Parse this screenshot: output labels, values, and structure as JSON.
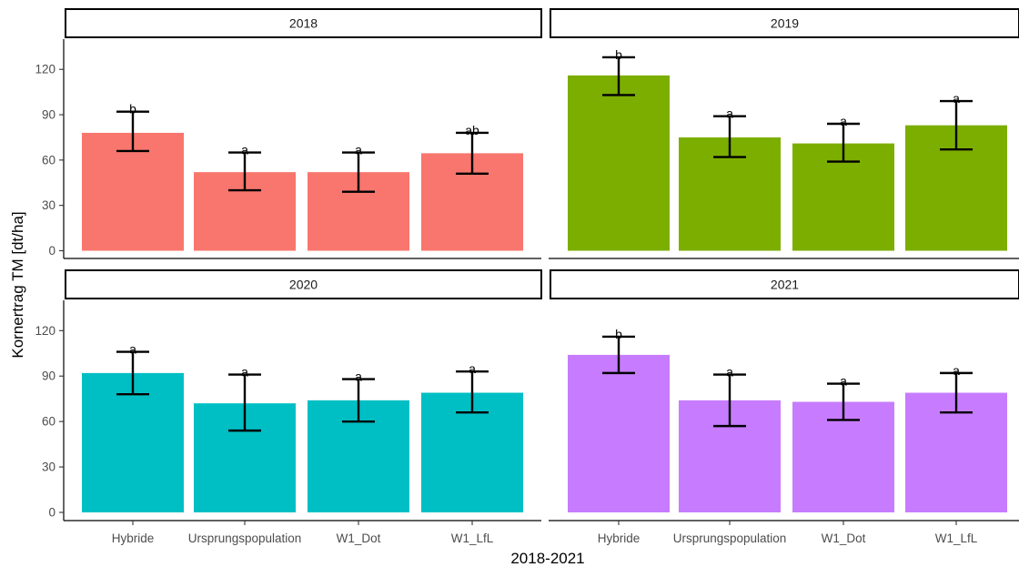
{
  "chart_data": {
    "type": "bar",
    "xlabel": "2018-2021",
    "ylabel": "Kornertrag TM [dt/ha]",
    "ylim": [
      0,
      140
    ],
    "yticks": [
      0,
      30,
      60,
      90,
      120
    ],
    "categories": [
      "Hybride",
      "Ursprungspopulation",
      "W1_Dot",
      "W1_LfL"
    ],
    "legend": "none",
    "grid": false,
    "panels": [
      {
        "title": "2018",
        "color": "#F8766D",
        "values": [
          78,
          52,
          52,
          64.5
        ],
        "error_low": [
          66,
          40,
          39,
          51
        ],
        "error_high": [
          92,
          65,
          65,
          78
        ],
        "letters": [
          "b",
          "a",
          "a",
          "ab"
        ]
      },
      {
        "title": "2019",
        "color": "#7CAE00",
        "values": [
          116,
          75,
          71,
          83
        ],
        "error_low": [
          103,
          62,
          59,
          67
        ],
        "error_high": [
          128,
          89,
          84,
          99
        ],
        "letters": [
          "b",
          "a",
          "a",
          "a"
        ]
      },
      {
        "title": "2020",
        "color": "#00BFC4",
        "values": [
          92,
          72,
          74,
          79
        ],
        "error_low": [
          78,
          54,
          60,
          66
        ],
        "error_high": [
          106,
          91,
          88,
          93
        ],
        "letters": [
          "a",
          "a",
          "a",
          "a"
        ]
      },
      {
        "title": "2021",
        "color": "#C77CFF",
        "values": [
          104,
          74,
          73,
          79
        ],
        "error_low": [
          92,
          57,
          61,
          66
        ],
        "error_high": [
          116,
          91,
          85,
          92
        ],
        "letters": [
          "b",
          "a",
          "a",
          "a"
        ]
      }
    ]
  }
}
